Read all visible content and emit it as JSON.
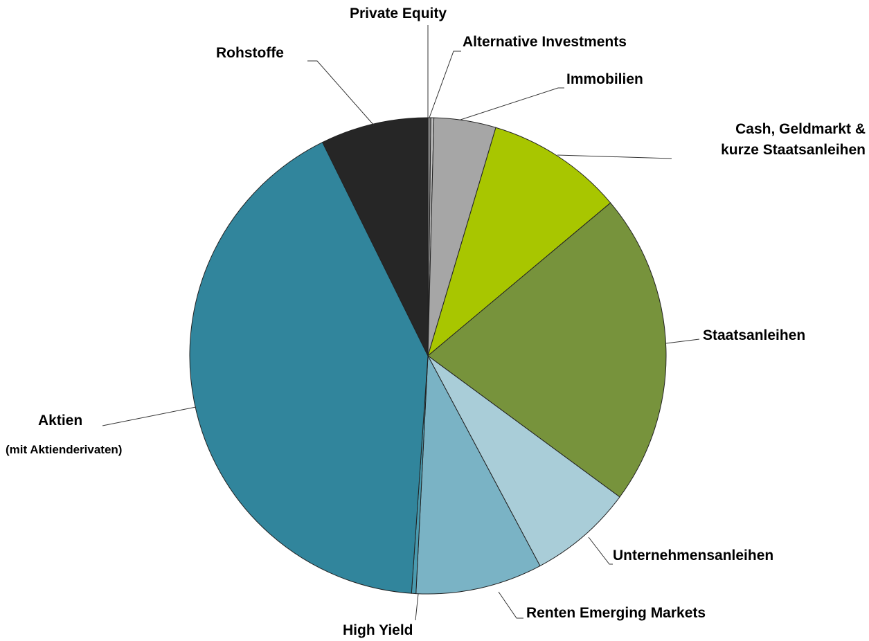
{
  "chart_data": {
    "type": "pie",
    "categories": [
      "Private Equity",
      "Alternative Investments",
      "Immobilien",
      "Cash, Geldmarkt &\nkurze Staatsanleihen",
      "Staatsanleihen",
      "Unternehmensanleihen",
      "Renten Emerging Markets",
      "High Yield",
      "Aktien",
      "Rohstoffe"
    ],
    "values": [
      0.2,
      0.2,
      4.2,
      9.3,
      21.2,
      7.1,
      8.6,
      0.3,
      41.6,
      7.3
    ],
    "colors": [
      "#7f7f7f",
      "#bfbfbf",
      "#a6a6a6",
      "#a8c600",
      "#77933c",
      "#a9cdd8",
      "#7ab3c5",
      "#4a9bb0",
      "#31859c",
      "#262626"
    ],
    "annotations": [
      "(mit Aktienderivaten)"
    ]
  }
}
